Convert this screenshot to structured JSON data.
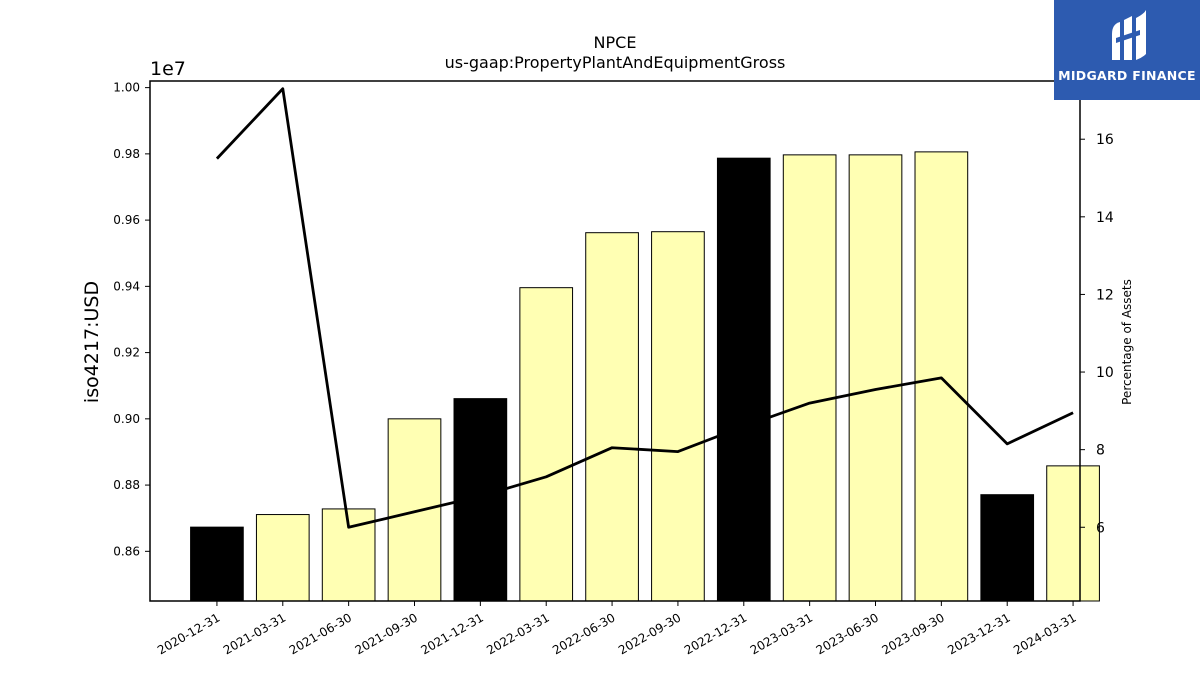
{
  "chart_data": {
    "type": "bar",
    "title": "NPCE",
    "subtitle": "us-gaap:PropertyPlantAndEquipmentGross",
    "ylabel": "iso4217:USD",
    "y_offset_label": "1e7",
    "y2label": "Percentage of Assets",
    "categories": [
      "2020-12-31",
      "2021-03-31",
      "2021-06-30",
      "2021-09-30",
      "2021-12-31",
      "2022-03-31",
      "2022-06-30",
      "2022-09-30",
      "2022-12-31",
      "2023-03-31",
      "2023-06-30",
      "2023-09-30",
      "2023-12-31",
      "2024-03-31"
    ],
    "series": [
      {
        "type": "bar",
        "values": [
          8673000,
          8711000,
          8728000,
          9000000,
          9061000,
          9396000,
          9562000,
          9565000,
          9787000,
          9797000,
          9797000,
          9806000,
          8771000,
          8858000
        ],
        "colors": [
          "#000000",
          "#ffffb3",
          "#ffffb3",
          "#ffffb3",
          "#000000",
          "#ffffb3",
          "#ffffb3",
          "#ffffb3",
          "#000000",
          "#ffffb3",
          "#ffffb3",
          "#ffffb3",
          "#000000",
          "#ffffb3"
        ]
      },
      {
        "type": "line",
        "axis": "right",
        "values": [
          15.5,
          17.3,
          6.0,
          6.4,
          6.8,
          7.3,
          8.05,
          7.95,
          8.6,
          9.2,
          9.55,
          9.85,
          8.15,
          8.95
        ],
        "color": "#000000"
      }
    ],
    "ylim": [
      8450000,
      10020000
    ],
    "yticks": [
      8600000,
      8800000,
      9000000,
      9200000,
      9400000,
      9600000,
      9800000,
      10000000
    ],
    "ytick_labels": [
      "0.86",
      "0.88",
      "0.90",
      "0.92",
      "0.94",
      "0.96",
      "0.98",
      "1.00"
    ],
    "y2lim": [
      4.1,
      17.5
    ],
    "y2ticks": [
      6,
      8,
      10,
      12,
      14,
      16
    ],
    "y2tick_labels": [
      "6",
      "8",
      "10",
      "12",
      "14",
      "16"
    ],
    "grid": false,
    "legend": "none"
  },
  "logo": {
    "text": "MIDGARD FINANCE",
    "color": "#2d5bb0"
  }
}
